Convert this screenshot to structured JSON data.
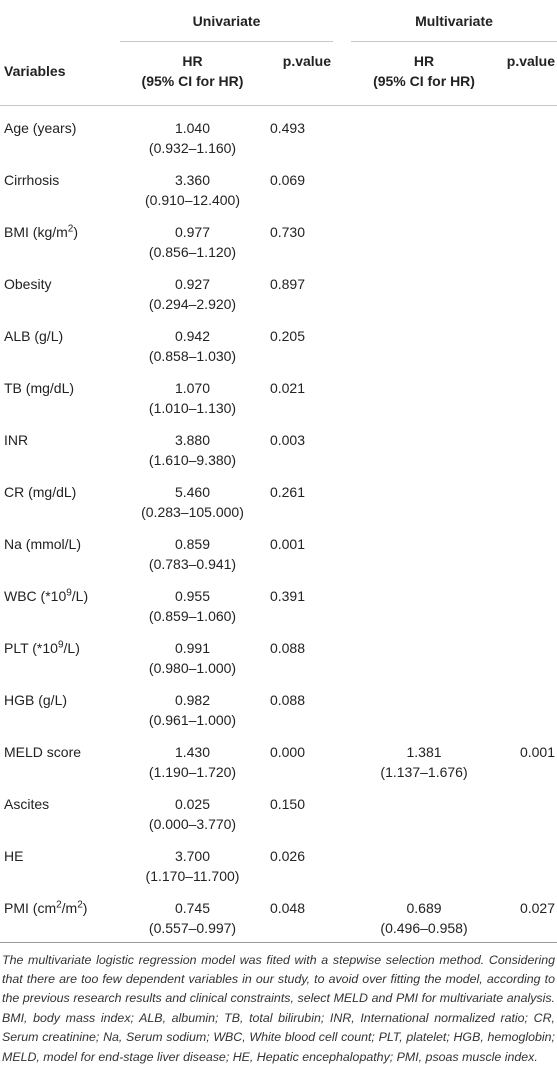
{
  "header": {
    "univariate": "Univariate",
    "multivariate": "Multivariate",
    "variables": "Variables",
    "hr": "HR",
    "hr_ci": "(95% CI for HR)",
    "pvalue": "p.value"
  },
  "rows": [
    {
      "name": "Age (years)",
      "hr": "1.040",
      "ci": "(0.932–1.160)",
      "p": "0.493",
      "mhr": "",
      "mci": "",
      "mp": ""
    },
    {
      "name": "Cirrhosis",
      "hr": "3.360",
      "ci": "(0.910–12.400)",
      "p": "0.069",
      "mhr": "",
      "mci": "",
      "mp": ""
    },
    {
      "name": "BMI (kg/m",
      "sup": "2",
      "tail": ")",
      "hr": "0.977",
      "ci": "(0.856–1.120)",
      "p": "0.730",
      "mhr": "",
      "mci": "",
      "mp": ""
    },
    {
      "name": "Obesity",
      "hr": "0.927",
      "ci": "(0.294–2.920)",
      "p": "0.897",
      "mhr": "",
      "mci": "",
      "mp": ""
    },
    {
      "name": "ALB (g/L)",
      "hr": "0.942",
      "ci": "(0.858–1.030)",
      "p": "0.205",
      "mhr": "",
      "mci": "",
      "mp": ""
    },
    {
      "name": "TB (mg/dL)",
      "hr": "1.070",
      "ci": "(1.010–1.130)",
      "p": "0.021",
      "mhr": "",
      "mci": "",
      "mp": ""
    },
    {
      "name": "INR",
      "hr": "3.880",
      "ci": "(1.610–9.380)",
      "p": "0.003",
      "mhr": "",
      "mci": "",
      "mp": ""
    },
    {
      "name": "CR (mg/dL)",
      "hr": "5.460",
      "ci": "(0.283–105.000)",
      "p": "0.261",
      "mhr": "",
      "mci": "",
      "mp": ""
    },
    {
      "name": "Na (mmol/L)",
      "hr": "0.859",
      "ci": "(0.783–0.941)",
      "p": "0.001",
      "mhr": "",
      "mci": "",
      "mp": ""
    },
    {
      "name": "WBC (*10",
      "sup": "9",
      "tail": "/L)",
      "hr": "0.955",
      "ci": "(0.859–1.060)",
      "p": "0.391",
      "mhr": "",
      "mci": "",
      "mp": ""
    },
    {
      "name": "PLT (*10",
      "sup": "9",
      "tail": "/L)",
      "hr": "0.991",
      "ci": "(0.980–1.000)",
      "p": "0.088",
      "mhr": "",
      "mci": "",
      "mp": ""
    },
    {
      "name": "HGB (g/L)",
      "hr": "0.982",
      "ci": "(0.961–1.000)",
      "p": "0.088",
      "mhr": "",
      "mci": "",
      "mp": ""
    },
    {
      "name": "MELD score",
      "hr": "1.430",
      "ci": "(1.190–1.720)",
      "p": "0.000",
      "mhr": "1.381",
      "mci": "(1.137–1.676)",
      "mp": "0.001"
    },
    {
      "name": "Ascites",
      "hr": "0.025",
      "ci": "(0.000–3.770)",
      "p": "0.150",
      "mhr": "",
      "mci": "",
      "mp": ""
    },
    {
      "name": "HE",
      "hr": "3.700",
      "ci": "(1.170–11.700)",
      "p": "0.026",
      "mhr": "",
      "mci": "",
      "mp": ""
    },
    {
      "name": "PMI (cm",
      "sup": "2",
      "tail": "/m",
      "sup2": "2",
      "tail2": ")",
      "hr": "0.745",
      "ci": "(0.557–0.997)",
      "p": "0.048",
      "mhr": "0.689",
      "mci": "(0.496–0.958)",
      "mp": "0.027"
    }
  ],
  "footnote": "The multivariate logistic regression model was fited with a stepwise selection method. Considering that there are too few dependent variables in our study, to avoid over fitting the model, according to the previous research results and clinical constraints, select MELD and PMI for multivariate analysis. BMI, body mass index; ALB, albumin; TB, total bilirubin; INR, International normalized ratio; CR, Serum creatinine; Na, Serum sodium; WBC, White blood cell count; PLT, platelet; HGB, hemoglobin; MELD, model for end-stage liver disease; HE, Hepatic encephalopathy; PMI, psoas muscle index."
}
